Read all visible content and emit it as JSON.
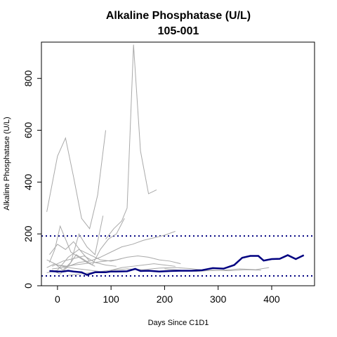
{
  "chart_data": {
    "type": "line",
    "title": "Alkaline Phosphatase (U/L)",
    "subtitle": "105-001",
    "xlabel": "Days Since C1D1",
    "ylabel": "Alkaline Phosphatase (U/L)",
    "xlim": [
      -30,
      480
    ],
    "ylim": [
      0,
      940
    ],
    "xticks": [
      0,
      100,
      200,
      300,
      400
    ],
    "yticks": [
      0,
      200,
      400,
      600,
      800
    ],
    "reference_lines": [
      {
        "y": 38,
        "style": "dotted",
        "color": "#000080"
      },
      {
        "y": 192,
        "style": "dotted",
        "color": "#000080"
      }
    ],
    "colors": {
      "highlight": "#000080",
      "background_series": "#a9a9a9"
    },
    "highlight_series": {
      "x": [
        -15,
        0,
        10,
        20,
        30,
        45,
        55,
        70,
        90,
        100,
        110,
        130,
        145,
        155,
        170,
        190,
        210,
        230,
        250,
        270,
        290,
        310,
        330,
        345,
        360,
        375,
        385,
        400,
        415,
        430,
        445,
        460
      ],
      "y": [
        57,
        55,
        55,
        58,
        55,
        52,
        42,
        52,
        52,
        55,
        55,
        56,
        65,
        57,
        58,
        55,
        57,
        58,
        58,
        60,
        68,
        66,
        80,
        108,
        115,
        115,
        97,
        103,
        104,
        118,
        103,
        118
      ]
    },
    "background_series": [
      {
        "x": [
          -20,
          0,
          15,
          30,
          45,
          60,
          75,
          90
        ],
        "y": [
          285,
          500,
          570,
          420,
          260,
          220,
          350,
          600
        ]
      },
      {
        "x": [
          90,
          105,
          120,
          130,
          142,
          155,
          170,
          185
        ],
        "y": [
          180,
          220,
          250,
          300,
          930,
          520,
          355,
          370
        ]
      },
      {
        "x": [
          -15,
          -5,
          5,
          15,
          25,
          40,
          55,
          70
        ],
        "y": [
          90,
          140,
          230,
          180,
          130,
          110,
          90,
          75
        ]
      },
      {
        "x": [
          -20,
          -5,
          10,
          25,
          40,
          55,
          70,
          85
        ],
        "y": [
          70,
          85,
          60,
          90,
          200,
          150,
          120,
          270
        ]
      },
      {
        "x": [
          -10,
          5,
          20,
          35,
          50,
          65,
          80,
          95,
          110,
          125
        ],
        "y": [
          60,
          45,
          75,
          120,
          100,
          80,
          140,
          180,
          200,
          260
        ]
      },
      {
        "x": [
          0,
          20,
          40,
          60,
          80,
          100,
          120,
          140,
          160,
          180,
          200,
          220
        ],
        "y": [
          80,
          75,
          90,
          95,
          110,
          130,
          150,
          160,
          175,
          185,
          195,
          210
        ]
      },
      {
        "x": [
          -20,
          0,
          20,
          40,
          60,
          80,
          100,
          120
        ],
        "y": [
          50,
          60,
          110,
          140,
          120,
          100,
          95,
          105
        ]
      },
      {
        "x": [
          -10,
          10,
          30,
          50,
          70,
          90,
          110,
          130,
          150,
          170,
          190,
          210,
          230
        ],
        "y": [
          65,
          70,
          80,
          85,
          90,
          95,
          100,
          110,
          115,
          110,
          100,
          95,
          85
        ]
      },
      {
        "x": [
          -15,
          0,
          15,
          30,
          45,
          60
        ],
        "y": [
          120,
          160,
          140,
          170,
          130,
          95
        ]
      },
      {
        "x": [
          20,
          40,
          60,
          80,
          100,
          120,
          140,
          160,
          180,
          200,
          220
        ],
        "y": [
          40,
          45,
          50,
          55,
          60,
          70,
          75,
          80,
          85,
          80,
          75
        ]
      },
      {
        "x": [
          -20,
          0,
          20,
          40,
          60,
          80
        ],
        "y": [
          100,
          80,
          70,
          65,
          60,
          55
        ]
      },
      {
        "x": [
          100,
          130,
          160,
          190,
          220,
          250,
          280,
          310,
          340,
          370,
          395
        ],
        "y": [
          60,
          65,
          62,
          68,
          70,
          66,
          58,
          60,
          65,
          62,
          70
        ]
      },
      {
        "x": [
          200,
          230,
          260,
          290,
          320,
          350,
          380
        ],
        "y": [
          65,
          60,
          55,
          60,
          58,
          62,
          60
        ]
      },
      {
        "x": [
          -10,
          10,
          30,
          50,
          70,
          90,
          110
        ],
        "y": [
          75,
          95,
          105,
          115,
          90,
          80,
          75
        ]
      }
    ]
  }
}
